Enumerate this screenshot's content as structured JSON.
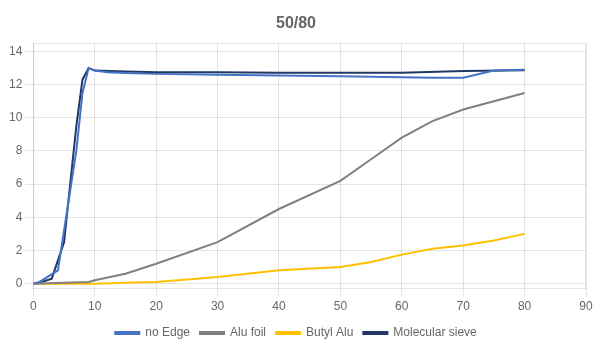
{
  "chart_data": {
    "type": "line",
    "title": "50/80",
    "xlim": [
      0,
      90
    ],
    "ylim": [
      -0.3,
      14.5
    ],
    "xticks": [
      0,
      10,
      20,
      30,
      40,
      50,
      60,
      70,
      80,
      90
    ],
    "yticks": [
      0,
      2,
      4,
      6,
      8,
      10,
      12,
      14
    ],
    "grid": true,
    "legend": "bottom",
    "series": [
      {
        "name": "no Edge",
        "color": "#4472C4",
        "x": [
          0,
          1,
          4,
          7,
          8,
          9,
          10,
          12,
          15,
          20,
          30,
          40,
          50,
          60,
          65,
          70,
          75,
          80
        ],
        "values": [
          0,
          0.1,
          0.8,
          8.0,
          11.5,
          13.0,
          12.85,
          12.75,
          12.7,
          12.65,
          12.6,
          12.55,
          12.5,
          12.45,
          12.42,
          12.42,
          12.85,
          12.9
        ]
      },
      {
        "name": "Alu foil",
        "color": "#808080",
        "x": [
          0,
          5,
          9,
          10,
          15,
          20,
          30,
          40,
          50,
          55,
          60,
          65,
          70,
          75,
          80
        ],
        "values": [
          0,
          0.05,
          0.1,
          0.2,
          0.6,
          1.2,
          2.5,
          4.5,
          6.2,
          7.5,
          8.8,
          9.8,
          10.5,
          11.0,
          11.5
        ]
      },
      {
        "name": "Butyl Alu",
        "color": "#FFC000",
        "x": [
          0,
          9,
          10,
          15,
          20,
          30,
          40,
          50,
          55,
          60,
          65,
          70,
          75,
          80
        ],
        "values": [
          0,
          0.0,
          0.0,
          0.05,
          0.1,
          0.4,
          0.8,
          1.0,
          1.3,
          1.75,
          2.1,
          2.3,
          2.6,
          3.0
        ]
      },
      {
        "name": "Molecular sieve",
        "color": "#1F3864",
        "x": [
          0,
          1,
          3,
          5,
          7,
          8,
          9,
          10,
          15,
          20,
          30,
          40,
          50,
          60,
          70,
          80
        ],
        "values": [
          0,
          0.05,
          0.3,
          2.5,
          9.5,
          12.3,
          13.0,
          12.85,
          12.8,
          12.75,
          12.75,
          12.72,
          12.72,
          12.72,
          12.82,
          12.87
        ]
      }
    ]
  }
}
